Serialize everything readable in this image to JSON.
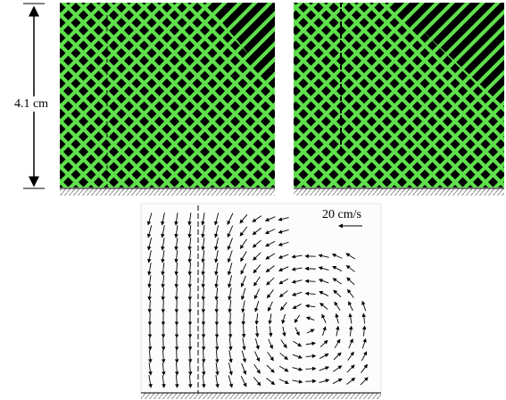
{
  "figure": {
    "scale_label": "4.1 cm",
    "velocity_label": "20 cm/s"
  }
}
